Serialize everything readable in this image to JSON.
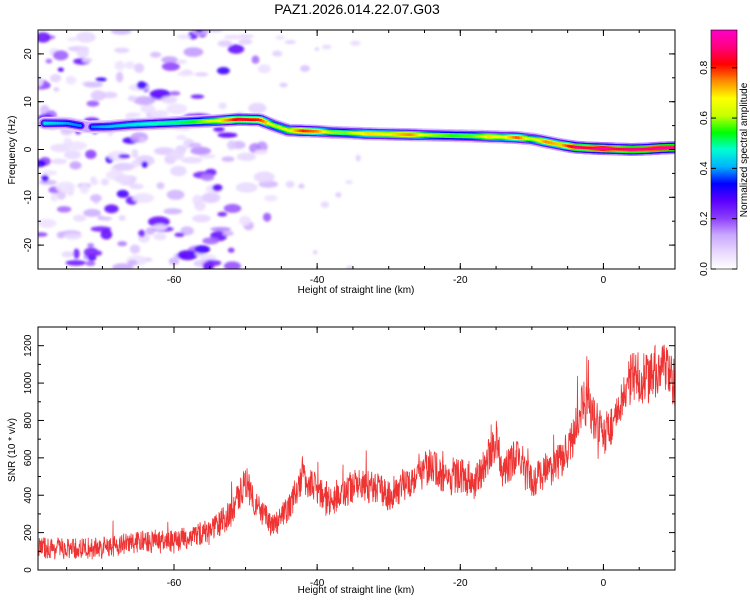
{
  "figure": {
    "title": "PAZ1.2026.014.22.07.G03"
  },
  "chart_data": [
    {
      "type": "heatmap",
      "title": "PAZ1.2026.014.22.07.G03",
      "xlabel": "Height of straight line (km)",
      "ylabel": "Frequency (Hz)",
      "xlim": [
        -79,
        10
      ],
      "ylim": [
        -25,
        25
      ],
      "xticks": [
        -60,
        -40,
        -20,
        0
      ],
      "xtick_labels": [
        "-60",
        "-40",
        "-20",
        "0"
      ],
      "yticks": [
        -20,
        -10,
        0,
        10,
        20
      ],
      "ytick_labels": [
        "-20",
        "-10",
        "0",
        "10",
        "20"
      ],
      "ridge": {
        "description": "dominant frequency track",
        "x": [
          -78,
          -75,
          -72,
          -69,
          -66,
          -63,
          -60,
          -57,
          -54,
          -51,
          -48,
          -46,
          -44,
          -42,
          -40,
          -38,
          -36,
          -33,
          -30,
          -27,
          -24,
          -21,
          -18,
          -16,
          -14,
          -12,
          -10,
          -8,
          -6,
          -4,
          -2,
          0,
          2,
          4,
          6,
          8,
          10
        ],
        "frequency": [
          5.5,
          5.5,
          4.7,
          4.8,
          5.2,
          5.4,
          5.6,
          5.8,
          6.0,
          6.3,
          6.2,
          5.0,
          4.0,
          3.9,
          3.8,
          3.6,
          3.5,
          3.3,
          3.2,
          3.1,
          3.0,
          2.9,
          2.8,
          2.7,
          2.6,
          2.5,
          2.2,
          1.6,
          1.0,
          0.5,
          0.3,
          0.2,
          0.1,
          0.0,
          0.1,
          0.3,
          0.4
        ],
        "amplitude": [
          0.45,
          0.4,
          0.38,
          0.42,
          0.45,
          0.48,
          0.5,
          0.55,
          0.65,
          0.85,
          0.8,
          0.6,
          0.65,
          0.8,
          0.75,
          0.6,
          0.58,
          0.7,
          0.68,
          0.75,
          0.6,
          0.55,
          0.58,
          0.7,
          0.65,
          0.78,
          0.6,
          0.75,
          0.7,
          0.88,
          0.85,
          0.95,
          0.85,
          0.9,
          0.88,
          0.92,
          0.9
        ]
      },
      "noise_region": {
        "x_range": [
          -79,
          -46
        ],
        "frequency_range": [
          -25,
          25
        ],
        "amplitude_range": [
          0.05,
          0.3
        ]
      },
      "colorbar": {
        "label": "Normalized spectral amplitude",
        "range": [
          0.0,
          0.95
        ],
        "ticks": [
          0.0,
          0.2,
          0.4,
          0.6,
          0.8
        ],
        "tick_labels": [
          "0.0",
          "0.2",
          "0.4",
          "0.6",
          "0.8"
        ],
        "colors": [
          "#ffffff",
          "#e8d8ff",
          "#c9a7ff",
          "#8c3cff",
          "#5a00ff",
          "#0000ff",
          "#00b4ff",
          "#00ffd2",
          "#00ff00",
          "#c8ff00",
          "#ffff00",
          "#ff8c00",
          "#ff0000",
          "#ff0080",
          "#ff00c8"
        ]
      }
    },
    {
      "type": "line",
      "xlabel": "Height of straight line (km)",
      "ylabel": "SNR (10 * v/v)",
      "xlim": [
        -79,
        10
      ],
      "ylim": [
        0,
        1300
      ],
      "xticks": [
        -60,
        -40,
        -20,
        0
      ],
      "xtick_labels": [
        "-60",
        "-40",
        "-20",
        "0"
      ],
      "yticks": [
        0,
        200,
        400,
        600,
        800,
        1000,
        1200
      ],
      "ytick_labels": [
        "0",
        "200",
        "400",
        "600",
        "800",
        "1000",
        "1200"
      ],
      "color": "#ee3333",
      "trend": {
        "x": [
          -79,
          -75,
          -70,
          -65,
          -60,
          -55,
          -52,
          -50,
          -48,
          -46,
          -44,
          -42,
          -40,
          -38,
          -35,
          -32,
          -30,
          -27,
          -24,
          -22,
          -20,
          -18,
          -16,
          -15,
          -14,
          -12,
          -10,
          -8,
          -6,
          -4,
          -3,
          -2,
          0,
          2,
          4,
          6,
          8,
          10
        ],
        "snr": [
          120,
          110,
          120,
          150,
          150,
          210,
          300,
          480,
          310,
          230,
          330,
          500,
          430,
          360,
          450,
          440,
          400,
          480,
          560,
          480,
          510,
          460,
          610,
          700,
          520,
          620,
          470,
          530,
          580,
          720,
          900,
          860,
          720,
          820,
          1040,
          1020,
          1090,
          1000
        ],
        "noise_amplitude": 80
      }
    }
  ]
}
